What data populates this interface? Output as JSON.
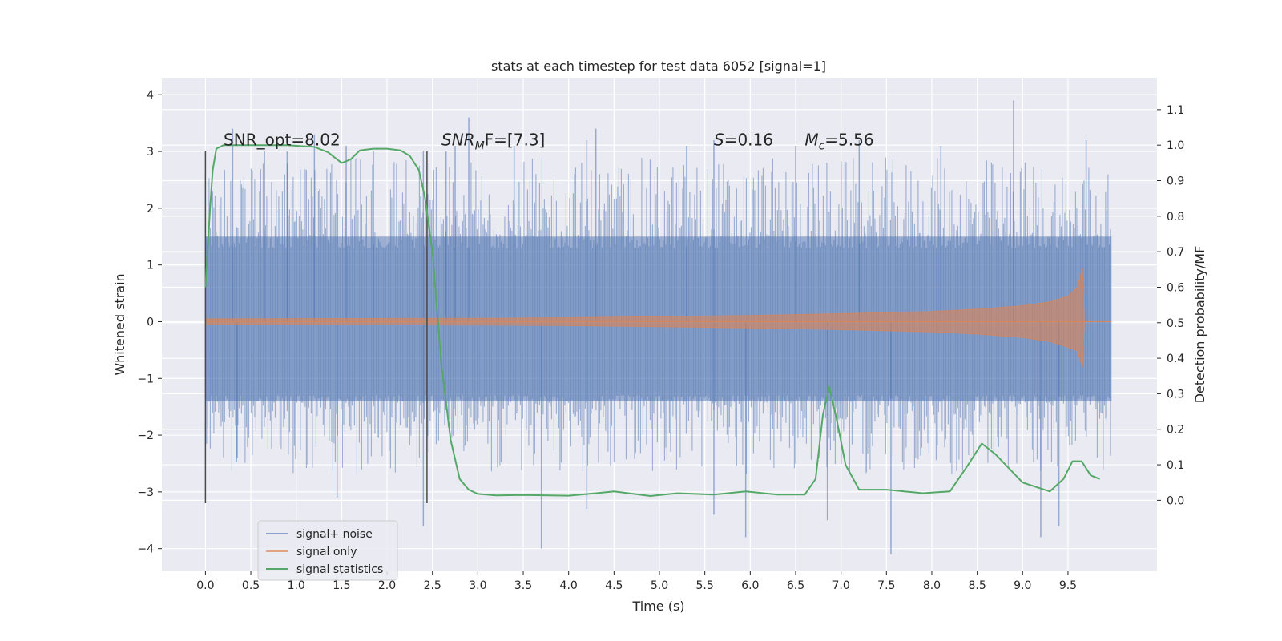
{
  "chart_data": {
    "type": "line",
    "title": "stats at each timestep for test data 6052 [signal=1]",
    "xlabel": "Time (s)",
    "ylabel": "Whitened strain",
    "y2label": "Detection probability/MF",
    "xlim": [
      -0.48,
      10.48
    ],
    "ylim": [
      -4.4,
      4.3
    ],
    "y2lim": [
      -0.2,
      1.19
    ],
    "xticks": [
      0.0,
      0.5,
      1.0,
      1.5,
      2.0,
      2.5,
      3.0,
      3.5,
      4.0,
      4.5,
      5.0,
      5.5,
      6.0,
      6.5,
      7.0,
      7.5,
      8.0,
      8.5,
      9.0,
      9.5
    ],
    "xtick_labels": [
      "0.0",
      "0.5",
      "1.0",
      "1.5",
      "2.0",
      "2.5",
      "3.0",
      "3.5",
      "4.0",
      "4.5",
      "5.0",
      "5.5",
      "6.0",
      "6.5",
      "7.0",
      "7.5",
      "8.0",
      "8.5",
      "9.0",
      "9.5"
    ],
    "yticks": [
      -4,
      -3,
      -2,
      -1,
      0,
      1,
      2,
      3,
      4
    ],
    "ytick_labels": [
      "−4",
      "−3",
      "−2",
      "−1",
      "0",
      "1",
      "2",
      "3",
      "4"
    ],
    "y2ticks": [
      0.0,
      0.1,
      0.2,
      0.3,
      0.4,
      0.5,
      0.6,
      0.7,
      0.8,
      0.9,
      1.0,
      1.1
    ],
    "y2tick_labels": [
      "0.0",
      "0.1",
      "0.2",
      "0.3",
      "0.4",
      "0.5",
      "0.6",
      "0.7",
      "0.8",
      "0.9",
      "1.0",
      "1.1"
    ],
    "grid": true,
    "legend_position": "lower-left",
    "colors": {
      "background": "#eaeaf2",
      "grid": "#ffffff",
      "noise": "#4c72b0",
      "signal": "#dd8452",
      "stats": "#55a868",
      "vline": "#4a4a4a"
    },
    "annotations": [
      {
        "text": "SNR_opt=8.02",
        "x": 0.2,
        "y": 3.05
      },
      {
        "base": "SNR",
        "sub": "M",
        "rest": "F=[7.3]",
        "x": 2.6,
        "y": 3.05
      },
      {
        "base": "S",
        "sub": "",
        "rest": "=0.16",
        "x": 5.6,
        "y": 3.05
      },
      {
        "base": "M",
        "sub": "c",
        "rest": "=5.56",
        "x": 6.6,
        "y": 3.05
      }
    ],
    "vlines": [
      {
        "x": 0.0,
        "ymin": -3.2,
        "ymax": 3.0
      },
      {
        "x": 2.44,
        "ymin": -3.2,
        "ymax": 3.0
      }
    ],
    "series": [
      {
        "name": "signal+ noise",
        "axis": "left",
        "x_range": [
          0.0,
          9.98
        ],
        "band": [
          -1.4,
          1.5
        ],
        "spikes_up": [
          [
            0.3,
            3.4
          ],
          [
            0.65,
            3.0
          ],
          [
            0.9,
            3.0
          ],
          [
            1.2,
            3.3
          ],
          [
            1.55,
            3.1
          ],
          [
            1.85,
            3.0
          ],
          [
            2.4,
            3.0
          ],
          [
            2.65,
            3.0
          ],
          [
            2.75,
            3.1
          ],
          [
            2.9,
            3.6
          ],
          [
            3.4,
            3.1
          ],
          [
            4.2,
            3.2
          ],
          [
            4.3,
            3.4
          ],
          [
            5.3,
            3.1
          ],
          [
            5.6,
            3.2
          ],
          [
            6.5,
            3.1
          ],
          [
            7.2,
            3.2
          ],
          [
            8.1,
            3.1
          ],
          [
            8.9,
            3.9
          ],
          [
            9.7,
            3.2
          ]
        ],
        "spikes_down": [
          [
            0.35,
            -2.4
          ],
          [
            1.45,
            -3.1
          ],
          [
            2.4,
            -3.6
          ],
          [
            3.7,
            -4.0
          ],
          [
            4.2,
            -3.3
          ],
          [
            5.6,
            -3.4
          ],
          [
            5.95,
            -3.8
          ],
          [
            6.85,
            -3.5
          ],
          [
            7.55,
            -4.1
          ],
          [
            9.2,
            -3.8
          ],
          [
            9.4,
            -3.6
          ]
        ]
      },
      {
        "name": "signal only",
        "axis": "left",
        "x_range": [
          0.0,
          9.98
        ],
        "envelope": [
          [
            0,
            0.05
          ],
          [
            3,
            0.06
          ],
          [
            4,
            0.07
          ],
          [
            5,
            0.09
          ],
          [
            6,
            0.11
          ],
          [
            7,
            0.14
          ],
          [
            8,
            0.18
          ],
          [
            8.5,
            0.22
          ],
          [
            9,
            0.28
          ],
          [
            9.3,
            0.35
          ],
          [
            9.5,
            0.45
          ],
          [
            9.6,
            0.6
          ],
          [
            9.66,
            0.95
          ],
          [
            9.68,
            0.0
          ],
          [
            9.98,
            0.0
          ]
        ]
      },
      {
        "name": "signal statistics",
        "axis": "right",
        "x": [
          0.0,
          0.05,
          0.08,
          0.12,
          0.2,
          0.35,
          0.6,
          0.9,
          1.2,
          1.35,
          1.5,
          1.6,
          1.7,
          1.85,
          2.0,
          2.15,
          2.25,
          2.35,
          2.42,
          2.5,
          2.6,
          2.7,
          2.8,
          2.9,
          3.0,
          3.2,
          3.5,
          4.0,
          4.3,
          4.5,
          4.9,
          5.2,
          5.6,
          5.95,
          6.3,
          6.6,
          6.72,
          6.8,
          6.87,
          6.95,
          7.05,
          7.2,
          7.5,
          7.9,
          8.2,
          8.4,
          8.55,
          8.7,
          9.0,
          9.3,
          9.45,
          9.55,
          9.65,
          9.75,
          9.85
        ],
        "y": [
          0.6,
          0.82,
          0.93,
          0.99,
          1.0,
          1.0,
          1.0,
          1.0,
          0.995,
          0.98,
          0.95,
          0.96,
          0.985,
          0.99,
          0.99,
          0.985,
          0.97,
          0.93,
          0.85,
          0.7,
          0.38,
          0.17,
          0.06,
          0.03,
          0.018,
          0.014,
          0.015,
          0.013,
          0.02,
          0.025,
          0.012,
          0.02,
          0.016,
          0.025,
          0.016,
          0.016,
          0.06,
          0.24,
          0.32,
          0.23,
          0.1,
          0.03,
          0.03,
          0.02,
          0.025,
          0.1,
          0.16,
          0.13,
          0.05,
          0.025,
          0.06,
          0.11,
          0.11,
          0.07,
          0.06
        ]
      }
    ]
  }
}
